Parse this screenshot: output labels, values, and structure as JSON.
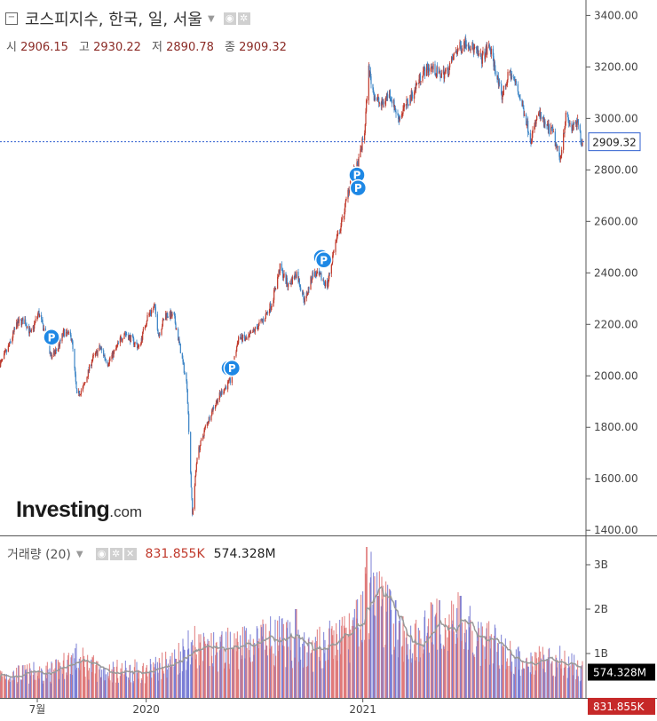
{
  "header": {
    "title": "코스피지수, 한국, 일, 서울",
    "open_label": "시",
    "open": "2906.15",
    "high_label": "고",
    "high": "2930.22",
    "low_label": "저",
    "low": "2890.78",
    "close_label": "종",
    "close": "2909.32"
  },
  "volume_header": {
    "title": "거래량 (20)",
    "value_red": "831.855K",
    "value_black": "574.328M"
  },
  "logo": {
    "main": "Investing",
    "suffix": ".com"
  },
  "colors": {
    "up": "#c0392b",
    "down": "#3d85c6",
    "vol_up": "#e07a7a",
    "vol_down": "#7b7fd6",
    "ma": "#999999",
    "last_price": "#2f5fd0",
    "marker": "#1e88e5"
  },
  "chart_data": {
    "type": "candlestick",
    "price_axis": {
      "ticks": [
        "3400.00",
        "3200.00",
        "3000.00",
        "2800.00",
        "2600.00",
        "2400.00",
        "2200.00",
        "2000.00",
        "1800.00",
        "1600.00",
        "1400.00"
      ],
      "range": [
        1380,
        3460
      ]
    },
    "volume_axis": {
      "ticks": [
        "3B",
        "2B",
        "1B"
      ],
      "range": [
        0,
        3.5
      ]
    },
    "x_labels": [
      "7월",
      "2020",
      "2021"
    ],
    "last_price_label": "2909.32",
    "volume_labels": [
      "574.328M",
      "831.855K"
    ],
    "marker_label": "P",
    "close_path": [
      {
        "d": "2019-05-01",
        "v": 2050
      },
      {
        "d": "2019-05-15",
        "v": 2120
      },
      {
        "d": "2019-05-28",
        "v": 2205
      },
      {
        "d": "2019-06-10",
        "v": 2215
      },
      {
        "d": "2019-06-20",
        "v": 2160
      },
      {
        "d": "2019-07-03",
        "v": 2245
      },
      {
        "d": "2019-07-15",
        "v": 2160
      },
      {
        "d": "2019-07-25",
        "v": 2070
      },
      {
        "d": "2019-08-05",
        "v": 2110
      },
      {
        "d": "2019-08-15",
        "v": 2170
      },
      {
        "d": "2019-08-28",
        "v": 2150
      },
      {
        "d": "2019-09-06",
        "v": 1920
      },
      {
        "d": "2019-09-18",
        "v": 1960
      },
      {
        "d": "2019-10-01",
        "v": 2060
      },
      {
        "d": "2019-10-15",
        "v": 2110
      },
      {
        "d": "2019-10-28",
        "v": 2050
      },
      {
        "d": "2019-11-10",
        "v": 2100
      },
      {
        "d": "2019-11-25",
        "v": 2170
      },
      {
        "d": "2019-12-08",
        "v": 2140
      },
      {
        "d": "2019-12-20",
        "v": 2110
      },
      {
        "d": "2020-01-03",
        "v": 2230
      },
      {
        "d": "2020-01-15",
        "v": 2270
      },
      {
        "d": "2020-01-22",
        "v": 2160
      },
      {
        "d": "2020-02-03",
        "v": 2240
      },
      {
        "d": "2020-02-17",
        "v": 2230
      },
      {
        "d": "2020-02-28",
        "v": 2100
      },
      {
        "d": "2020-03-10",
        "v": 1960
      },
      {
        "d": "2020-03-19",
        "v": 1460
      },
      {
        "d": "2020-03-27",
        "v": 1690
      },
      {
        "d": "2020-04-10",
        "v": 1800
      },
      {
        "d": "2020-04-24",
        "v": 1880
      },
      {
        "d": "2020-05-08",
        "v": 1940
      },
      {
        "d": "2020-05-22",
        "v": 1980
      },
      {
        "d": "2020-06-05",
        "v": 2150
      },
      {
        "d": "2020-06-19",
        "v": 2140
      },
      {
        "d": "2020-07-03",
        "v": 2180
      },
      {
        "d": "2020-07-17",
        "v": 2220
      },
      {
        "d": "2020-07-31",
        "v": 2280
      },
      {
        "d": "2020-08-14",
        "v": 2420
      },
      {
        "d": "2020-08-28",
        "v": 2350
      },
      {
        "d": "2020-09-11",
        "v": 2400
      },
      {
        "d": "2020-09-25",
        "v": 2290
      },
      {
        "d": "2020-10-09",
        "v": 2400
      },
      {
        "d": "2020-10-23",
        "v": 2380
      },
      {
        "d": "2020-11-02",
        "v": 2350
      },
      {
        "d": "2020-11-13",
        "v": 2490
      },
      {
        "d": "2020-11-27",
        "v": 2600
      },
      {
        "d": "2020-12-11",
        "v": 2760
      },
      {
        "d": "2020-12-24",
        "v": 2820
      },
      {
        "d": "2021-01-04",
        "v": 2950
      },
      {
        "d": "2021-01-11",
        "v": 3190
      },
      {
        "d": "2021-01-20",
        "v": 3090
      },
      {
        "d": "2021-02-01",
        "v": 3050
      },
      {
        "d": "2021-02-15",
        "v": 3100
      },
      {
        "d": "2021-03-02",
        "v": 3000
      },
      {
        "d": "2021-03-15",
        "v": 3050
      },
      {
        "d": "2021-03-29",
        "v": 3110
      },
      {
        "d": "2021-04-12",
        "v": 3180
      },
      {
        "d": "2021-04-26",
        "v": 3200
      },
      {
        "d": "2021-05-10",
        "v": 3170
      },
      {
        "d": "2021-05-24",
        "v": 3180
      },
      {
        "d": "2021-06-07",
        "v": 3260
      },
      {
        "d": "2021-06-25",
        "v": 3300
      },
      {
        "d": "2021-07-07",
        "v": 3270
      },
      {
        "d": "2021-07-20",
        "v": 3230
      },
      {
        "d": "2021-08-03",
        "v": 3280
      },
      {
        "d": "2021-08-13",
        "v": 3190
      },
      {
        "d": "2021-08-23",
        "v": 3080
      },
      {
        "d": "2021-09-06",
        "v": 3180
      },
      {
        "d": "2021-09-17",
        "v": 3130
      },
      {
        "d": "2021-10-01",
        "v": 3020
      },
      {
        "d": "2021-10-12",
        "v": 2920
      },
      {
        "d": "2021-10-25",
        "v": 3020
      },
      {
        "d": "2021-11-05",
        "v": 2970
      },
      {
        "d": "2021-11-17",
        "v": 2950
      },
      {
        "d": "2021-11-30",
        "v": 2840
      },
      {
        "d": "2021-12-10",
        "v": 3010
      },
      {
        "d": "2021-12-20",
        "v": 2960
      },
      {
        "d": "2021-12-30",
        "v": 2980
      },
      {
        "d": "2022-01-06",
        "v": 2909
      }
    ],
    "markers": [
      {
        "d": "2019-07-25",
        "v": 2150
      },
      {
        "d": "2020-05-20",
        "v": 2030
      },
      {
        "d": "2020-05-25",
        "v": 2030
      },
      {
        "d": "2020-10-23",
        "v": 2460
      },
      {
        "d": "2020-10-27",
        "v": 2450
      },
      {
        "d": "2020-12-22",
        "v": 2780
      },
      {
        "d": "2020-12-24",
        "v": 2730
      }
    ],
    "volume_path": [
      {
        "d": "2019-05-01",
        "v": 0.5
      },
      {
        "d": "2019-08-01",
        "v": 0.6
      },
      {
        "d": "2019-09-01",
        "v": 0.9
      },
      {
        "d": "2019-10-15",
        "v": 0.6
      },
      {
        "d": "2020-01-01",
        "v": 0.6
      },
      {
        "d": "2020-02-15",
        "v": 0.8
      },
      {
        "d": "2020-03-15",
        "v": 1.2
      },
      {
        "d": "2020-04-15",
        "v": 1.0
      },
      {
        "d": "2020-06-15",
        "v": 1.2
      },
      {
        "d": "2020-08-15",
        "v": 1.3
      },
      {
        "d": "2020-10-01",
        "v": 1.0
      },
      {
        "d": "2020-11-20",
        "v": 1.3
      },
      {
        "d": "2020-12-20",
        "v": 1.5
      },
      {
        "d": "2021-01-11",
        "v": 2.4
      },
      {
        "d": "2021-02-15",
        "v": 1.8
      },
      {
        "d": "2021-03-15",
        "v": 1.2
      },
      {
        "d": "2021-04-15",
        "v": 1.5
      },
      {
        "d": "2021-05-15",
        "v": 1.6
      },
      {
        "d": "2021-06-15",
        "v": 1.7
      },
      {
        "d": "2021-07-15",
        "v": 1.2
      },
      {
        "d": "2021-08-15",
        "v": 1.2
      },
      {
        "d": "2021-09-20",
        "v": 0.8
      },
      {
        "d": "2021-11-01",
        "v": 0.9
      },
      {
        "d": "2021-12-15",
        "v": 0.8
      },
      {
        "d": "2022-01-06",
        "v": 0.6
      }
    ],
    "volume_spikes": [
      {
        "d": "2020-09-10",
        "v": 2.0
      },
      {
        "d": "2021-01-08",
        "v": 3.4
      },
      {
        "d": "2021-01-27",
        "v": 2.3
      },
      {
        "d": "2021-02-26",
        "v": 2.2
      },
      {
        "d": "2021-05-10",
        "v": 2.2
      },
      {
        "d": "2021-06-15",
        "v": 2.3
      }
    ],
    "date_range": [
      "2019-04-29",
      "2022-01-07"
    ],
    "x_label_dates": [
      "2019-07-01",
      "2020-01-01",
      "2021-01-01"
    ]
  }
}
